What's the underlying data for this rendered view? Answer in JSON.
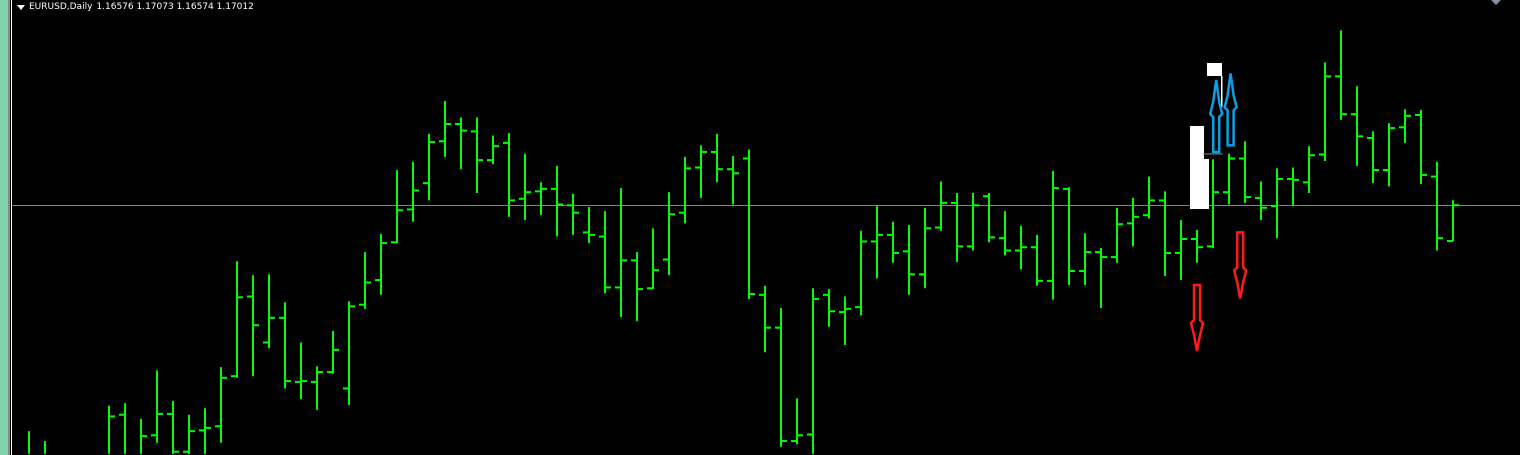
{
  "header": {
    "symbol_timeframe": "EURUSD,Daily",
    "ohlc_readout": "1.16576 1.17073 1.16574 1.17012"
  },
  "colors": {
    "background": "#000000",
    "bar": "#00ff00",
    "bid_line": "#7b8594",
    "sell_arrow": "#ff1a1a",
    "buy_arrow": "#0aa0e6",
    "object": "#ffffff"
  },
  "chart_data": {
    "type": "ohlc",
    "symbol": "EURUSD",
    "timeframe": "Daily",
    "ylim": [
      1.1397,
      1.1951
    ],
    "grid": false,
    "bid_line": 1.17012,
    "bars": [
      [
        1.1388,
        1.1426,
        1.1373,
        1.1393
      ],
      [
        1.1393,
        1.1414,
        1.1367,
        1.1384
      ],
      [
        1.1384,
        1.1391,
        1.136,
        1.1379
      ],
      [
        1.1379,
        1.1388,
        1.1367,
        1.1387
      ],
      [
        1.1387,
        1.1393,
        1.1369,
        1.1391
      ],
      [
        1.1393,
        1.1457,
        1.1388,
        1.1444
      ],
      [
        1.1446,
        1.146,
        1.1385,
        1.1391
      ],
      [
        1.1391,
        1.1441,
        1.1388,
        1.142
      ],
      [
        1.1421,
        1.15,
        1.1412,
        1.1447
      ],
      [
        1.1447,
        1.1463,
        1.1393,
        1.1401
      ],
      [
        1.1401,
        1.1446,
        1.1391,
        1.1426
      ],
      [
        1.1427,
        1.1454,
        1.1393,
        1.143
      ],
      [
        1.1432,
        1.1504,
        1.1412,
        1.1491
      ],
      [
        1.1493,
        1.1633,
        1.1491,
        1.1589
      ],
      [
        1.159,
        1.1616,
        1.1493,
        1.1555
      ],
      [
        1.1534,
        1.1617,
        1.1527,
        1.1564
      ],
      [
        1.1564,
        1.1583,
        1.1478,
        1.1487
      ],
      [
        1.1486,
        1.1534,
        1.1465,
        1.1487
      ],
      [
        1.1486,
        1.1505,
        1.1452,
        1.1498
      ],
      [
        1.1498,
        1.1548,
        1.1496,
        1.1525
      ],
      [
        1.1478,
        1.1584,
        1.1458,
        1.1578
      ],
      [
        1.158,
        1.1644,
        1.1575,
        1.1607
      ],
      [
        1.161,
        1.1666,
        1.1592,
        1.1655
      ],
      [
        1.1656,
        1.1744,
        1.1655,
        1.1695
      ],
      [
        1.1696,
        1.1754,
        1.1681,
        1.1719
      ],
      [
        1.1728,
        1.1788,
        1.1707,
        1.1778
      ],
      [
        1.1779,
        1.1828,
        1.176,
        1.18
      ],
      [
        1.18,
        1.1808,
        1.1745,
        1.1792
      ],
      [
        1.1791,
        1.1808,
        1.1716,
        1.1756
      ],
      [
        1.1756,
        1.1786,
        1.1751,
        1.1773
      ],
      [
        1.1777,
        1.1789,
        1.1687,
        1.1707
      ],
      [
        1.1709,
        1.1764,
        1.1683,
        1.1717
      ],
      [
        1.1718,
        1.1729,
        1.1689,
        1.1721
      ],
      [
        1.1721,
        1.1749,
        1.1663,
        1.1702
      ],
      [
        1.1701,
        1.1715,
        1.1665,
        1.1692
      ],
      [
        1.1668,
        1.1699,
        1.1655,
        1.1665
      ],
      [
        1.1663,
        1.1694,
        1.1594,
        1.1601
      ],
      [
        1.1601,
        1.1722,
        1.1565,
        1.1634
      ],
      [
        1.1634,
        1.1644,
        1.156,
        1.1599
      ],
      [
        1.16,
        1.1673,
        1.1599,
        1.1622
      ],
      [
        1.1635,
        1.1717,
        1.1616,
        1.169
      ],
      [
        1.1692,
        1.176,
        1.1679,
        1.1746
      ],
      [
        1.1747,
        1.1774,
        1.171,
        1.1766
      ],
      [
        1.1766,
        1.1788,
        1.1729,
        1.1745
      ],
      [
        1.1745,
        1.1761,
        1.1702,
        1.174
      ],
      [
        1.1758,
        1.1769,
        1.1587,
        1.1593
      ],
      [
        1.1592,
        1.1603,
        1.1522,
        1.1552
      ],
      [
        1.1552,
        1.1576,
        1.1407,
        1.1414
      ],
      [
        1.1414,
        1.1466,
        1.141,
        1.1421
      ],
      [
        1.1422,
        1.16,
        1.1398,
        1.1587
      ],
      [
        1.1592,
        1.1599,
        1.1553,
        1.1572
      ],
      [
        1.1571,
        1.159,
        1.1531,
        1.1575
      ],
      [
        1.1577,
        1.167,
        1.1567,
        1.1657
      ],
      [
        1.1657,
        1.17,
        1.1612,
        1.1665
      ],
      [
        1.1665,
        1.1681,
        1.1631,
        1.1643
      ],
      [
        1.1645,
        1.1677,
        1.1592,
        1.1617
      ],
      [
        1.1617,
        1.1698,
        1.16,
        1.1673
      ],
      [
        1.1674,
        1.173,
        1.167,
        1.1704
      ],
      [
        1.1704,
        1.1716,
        1.1632,
        1.1651
      ],
      [
        1.1651,
        1.1716,
        1.1646,
        1.1701
      ],
      [
        1.1712,
        1.1716,
        1.1656,
        1.1662
      ],
      [
        1.1661,
        1.1694,
        1.164,
        1.1646
      ],
      [
        1.1646,
        1.1676,
        1.1623,
        1.165
      ],
      [
        1.165,
        1.1665,
        1.1603,
        1.1609
      ],
      [
        1.1609,
        1.1743,
        1.1586,
        1.1722
      ],
      [
        1.1721,
        1.1723,
        1.1604,
        1.1621
      ],
      [
        1.1621,
        1.1667,
        1.1604,
        1.1644
      ],
      [
        1.1644,
        1.1649,
        1.1576,
        1.1638
      ],
      [
        1.1638,
        1.1698,
        1.1631,
        1.1678
      ],
      [
        1.1679,
        1.171,
        1.1651,
        1.1687
      ],
      [
        1.1689,
        1.1736,
        1.1685,
        1.1707
      ],
      [
        1.1707,
        1.1718,
        1.1615,
        1.1643
      ],
      [
        1.1643,
        1.1683,
        1.161,
        1.166
      ],
      [
        1.166,
        1.1671,
        1.1631,
        1.165
      ],
      [
        1.1651,
        1.1757,
        1.1649,
        1.1717
      ],
      [
        1.1717,
        1.1764,
        1.1702,
        1.1758
      ],
      [
        1.1758,
        1.1779,
        1.1704,
        1.1711
      ],
      [
        1.171,
        1.173,
        1.1683,
        1.1698
      ],
      [
        1.17,
        1.1746,
        1.1661,
        1.1733
      ],
      [
        1.1733,
        1.1747,
        1.1701,
        1.1732
      ],
      [
        1.1729,
        1.1773,
        1.1716,
        1.1762
      ],
      [
        1.1763,
        1.1875,
        1.1755,
        1.1858
      ],
      [
        1.1858,
        1.1914,
        1.1805,
        1.1812
      ],
      [
        1.1812,
        1.1846,
        1.1749,
        1.1785
      ],
      [
        1.1783,
        1.1791,
        1.1728,
        1.1744
      ],
      [
        1.1744,
        1.1801,
        1.1724,
        1.1795
      ],
      [
        1.1796,
        1.1818,
        1.1777,
        1.181
      ],
      [
        1.1811,
        1.1817,
        1.1727,
        1.1738
      ],
      [
        1.1736,
        1.1754,
        1.1646,
        1.1661
      ],
      [
        1.16576,
        1.17073,
        1.16574,
        1.17012
      ]
    ],
    "signals": [
      {
        "type": "sell",
        "bar": 74,
        "price": 1.1604
      },
      {
        "type": "sell",
        "bar": 76.7,
        "price": 1.1668
      },
      {
        "type": "buy",
        "bar": 75.2,
        "price": 1.1766
      },
      {
        "type": "buy",
        "bar": 76.1,
        "price": 1.1774
      }
    ]
  }
}
